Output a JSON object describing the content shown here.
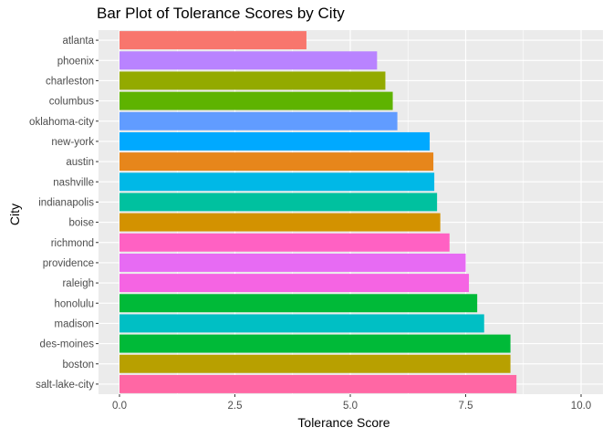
{
  "chart_data": {
    "type": "bar",
    "orientation": "horizontal",
    "title": "Bar Plot of Tolerance Scores by City",
    "xlabel": "Tolerance Score",
    "ylabel": "City",
    "xlim": [
      0,
      10
    ],
    "x_ticks": [
      "0.0",
      "2.5",
      "5.0",
      "7.5",
      "10.0"
    ],
    "grid": true,
    "legend": "none",
    "categories": [
      "atlanta",
      "phoenix",
      "charleston",
      "columbus",
      "oklahoma-city",
      "new-york",
      "austin",
      "nashville",
      "indianapolis",
      "boise",
      "richmond",
      "providence",
      "raleigh",
      "honolulu",
      "madison",
      "des-moines",
      "boston",
      "salt-lake-city"
    ],
    "values": [
      4.05,
      5.58,
      5.76,
      5.92,
      6.02,
      6.72,
      6.8,
      6.82,
      6.88,
      6.95,
      7.15,
      7.5,
      7.57,
      7.75,
      7.9,
      8.47,
      8.47,
      8.6
    ],
    "colors": [
      "#F8766D",
      "#B983FF",
      "#93AA00",
      "#5EB300",
      "#619CFF",
      "#00A9FF",
      "#E7861B",
      "#00B8E7",
      "#00C19F",
      "#D39200",
      "#FF61C3",
      "#E76BF3",
      "#F564E3",
      "#00BA38",
      "#00BFC4",
      "#00BA38",
      "#B8A000",
      "#FF67A4"
    ]
  }
}
